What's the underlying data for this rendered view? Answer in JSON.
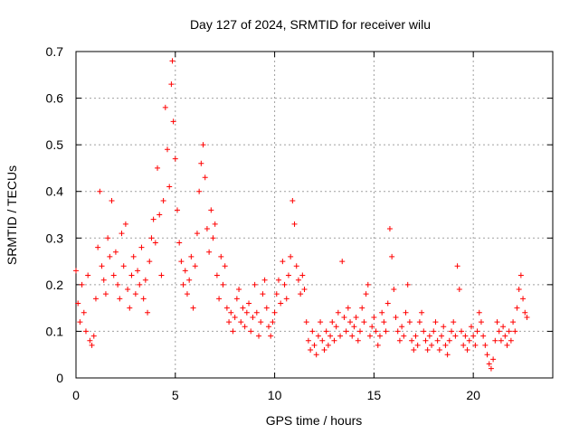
{
  "chart_data": {
    "type": "scatter",
    "title": "Day 127 of 2024, SRMTID for receiver wilu",
    "xlabel": "GPS time / hours",
    "ylabel": "SRMTID / TECUs",
    "xlim": [
      0,
      24
    ],
    "ylim": [
      0,
      0.7
    ],
    "xticks": [
      0,
      5,
      10,
      15,
      20
    ],
    "yticks": [
      0,
      0.1,
      0.2,
      0.3,
      0.4,
      0.5,
      0.6,
      0.7
    ],
    "grid": true,
    "marker": "+",
    "series": [
      {
        "name": "SRMTID",
        "color": "#ff0000",
        "points": [
          [
            0.0,
            0.23
          ],
          [
            0.1,
            0.16
          ],
          [
            0.2,
            0.12
          ],
          [
            0.3,
            0.2
          ],
          [
            0.4,
            0.14
          ],
          [
            0.5,
            0.1
          ],
          [
            0.6,
            0.22
          ],
          [
            0.7,
            0.08
          ],
          [
            0.8,
            0.07
          ],
          [
            0.9,
            0.09
          ],
          [
            1.0,
            0.17
          ],
          [
            1.1,
            0.28
          ],
          [
            1.2,
            0.4
          ],
          [
            1.3,
            0.24
          ],
          [
            1.4,
            0.21
          ],
          [
            1.5,
            0.18
          ],
          [
            1.6,
            0.3
          ],
          [
            1.7,
            0.26
          ],
          [
            1.8,
            0.38
          ],
          [
            1.9,
            0.22
          ],
          [
            2.0,
            0.27
          ],
          [
            2.1,
            0.2
          ],
          [
            2.2,
            0.17
          ],
          [
            2.3,
            0.31
          ],
          [
            2.4,
            0.24
          ],
          [
            2.5,
            0.33
          ],
          [
            2.6,
            0.19
          ],
          [
            2.7,
            0.15
          ],
          [
            2.8,
            0.22
          ],
          [
            2.9,
            0.26
          ],
          [
            3.0,
            0.18
          ],
          [
            3.1,
            0.23
          ],
          [
            3.2,
            0.2
          ],
          [
            3.3,
            0.28
          ],
          [
            3.4,
            0.17
          ],
          [
            3.5,
            0.21
          ],
          [
            3.6,
            0.14
          ],
          [
            3.7,
            0.25
          ],
          [
            3.8,
            0.3
          ],
          [
            3.9,
            0.34
          ],
          [
            4.0,
            0.29
          ],
          [
            4.1,
            0.45
          ],
          [
            4.2,
            0.35
          ],
          [
            4.3,
            0.22
          ],
          [
            4.4,
            0.38
          ],
          [
            4.5,
            0.58
          ],
          [
            4.6,
            0.49
          ],
          [
            4.7,
            0.41
          ],
          [
            4.8,
            0.63
          ],
          [
            4.85,
            0.68
          ],
          [
            4.9,
            0.55
          ],
          [
            5.0,
            0.47
          ],
          [
            5.1,
            0.36
          ],
          [
            5.2,
            0.29
          ],
          [
            5.3,
            0.25
          ],
          [
            5.4,
            0.2
          ],
          [
            5.5,
            0.23
          ],
          [
            5.6,
            0.18
          ],
          [
            5.7,
            0.21
          ],
          [
            5.8,
            0.26
          ],
          [
            5.9,
            0.15
          ],
          [
            6.0,
            0.24
          ],
          [
            6.1,
            0.31
          ],
          [
            6.2,
            0.4
          ],
          [
            6.3,
            0.46
          ],
          [
            6.4,
            0.5
          ],
          [
            6.5,
            0.43
          ],
          [
            6.6,
            0.32
          ],
          [
            6.7,
            0.27
          ],
          [
            6.8,
            0.36
          ],
          [
            6.9,
            0.3
          ],
          [
            7.0,
            0.33
          ],
          [
            7.1,
            0.22
          ],
          [
            7.2,
            0.17
          ],
          [
            7.3,
            0.26
          ],
          [
            7.4,
            0.2
          ],
          [
            7.5,
            0.24
          ],
          [
            7.6,
            0.15
          ],
          [
            7.7,
            0.12
          ],
          [
            7.8,
            0.14
          ],
          [
            7.9,
            0.1
          ],
          [
            8.0,
            0.13
          ],
          [
            8.1,
            0.17
          ],
          [
            8.2,
            0.19
          ],
          [
            8.3,
            0.12
          ],
          [
            8.4,
            0.15
          ],
          [
            8.5,
            0.11
          ],
          [
            8.6,
            0.14
          ],
          [
            8.7,
            0.16
          ],
          [
            8.8,
            0.1
          ],
          [
            8.9,
            0.13
          ],
          [
            9.0,
            0.2
          ],
          [
            9.1,
            0.14
          ],
          [
            9.2,
            0.09
          ],
          [
            9.3,
            0.12
          ],
          [
            9.4,
            0.18
          ],
          [
            9.5,
            0.21
          ],
          [
            9.6,
            0.15
          ],
          [
            9.7,
            0.11
          ],
          [
            9.8,
            0.09
          ],
          [
            9.9,
            0.12
          ],
          [
            10.0,
            0.14
          ],
          [
            10.1,
            0.18
          ],
          [
            10.2,
            0.21
          ],
          [
            10.3,
            0.16
          ],
          [
            10.4,
            0.25
          ],
          [
            10.5,
            0.2
          ],
          [
            10.6,
            0.17
          ],
          [
            10.7,
            0.22
          ],
          [
            10.8,
            0.26
          ],
          [
            10.9,
            0.38
          ],
          [
            11.0,
            0.33
          ],
          [
            11.1,
            0.24
          ],
          [
            11.2,
            0.21
          ],
          [
            11.3,
            0.18
          ],
          [
            11.4,
            0.22
          ],
          [
            11.5,
            0.19
          ],
          [
            11.6,
            0.12
          ],
          [
            11.7,
            0.08
          ],
          [
            11.8,
            0.06
          ],
          [
            11.9,
            0.1
          ],
          [
            12.0,
            0.07
          ],
          [
            12.1,
            0.05
          ],
          [
            12.2,
            0.09
          ],
          [
            12.3,
            0.12
          ],
          [
            12.4,
            0.08
          ],
          [
            12.5,
            0.06
          ],
          [
            12.6,
            0.1
          ],
          [
            12.7,
            0.07
          ],
          [
            12.8,
            0.09
          ],
          [
            12.9,
            0.12
          ],
          [
            13.0,
            0.08
          ],
          [
            13.1,
            0.11
          ],
          [
            13.2,
            0.14
          ],
          [
            13.3,
            0.09
          ],
          [
            13.4,
            0.25
          ],
          [
            13.5,
            0.13
          ],
          [
            13.6,
            0.1
          ],
          [
            13.7,
            0.15
          ],
          [
            13.8,
            0.12
          ],
          [
            13.9,
            0.09
          ],
          [
            14.0,
            0.11
          ],
          [
            14.1,
            0.13
          ],
          [
            14.2,
            0.08
          ],
          [
            14.3,
            0.1
          ],
          [
            14.4,
            0.15
          ],
          [
            14.5,
            0.12
          ],
          [
            14.6,
            0.18
          ],
          [
            14.7,
            0.2
          ],
          [
            14.8,
            0.09
          ],
          [
            14.9,
            0.11
          ],
          [
            15.0,
            0.13
          ],
          [
            15.1,
            0.1
          ],
          [
            15.2,
            0.07
          ],
          [
            15.3,
            0.09
          ],
          [
            15.4,
            0.14
          ],
          [
            15.5,
            0.12
          ],
          [
            15.6,
            0.1
          ],
          [
            15.7,
            0.16
          ],
          [
            15.8,
            0.32
          ],
          [
            15.9,
            0.26
          ],
          [
            16.0,
            0.19
          ],
          [
            16.1,
            0.13
          ],
          [
            16.2,
            0.1
          ],
          [
            16.3,
            0.08
          ],
          [
            16.4,
            0.11
          ],
          [
            16.5,
            0.09
          ],
          [
            16.6,
            0.14
          ],
          [
            16.7,
            0.2
          ],
          [
            16.8,
            0.12
          ],
          [
            16.9,
            0.08
          ],
          [
            17.0,
            0.06
          ],
          [
            17.1,
            0.09
          ],
          [
            17.2,
            0.07
          ],
          [
            17.3,
            0.12
          ],
          [
            17.4,
            0.14
          ],
          [
            17.5,
            0.1
          ],
          [
            17.6,
            0.08
          ],
          [
            17.7,
            0.06
          ],
          [
            17.8,
            0.09
          ],
          [
            17.9,
            0.07
          ],
          [
            18.0,
            0.1
          ],
          [
            18.1,
            0.12
          ],
          [
            18.2,
            0.08
          ],
          [
            18.3,
            0.06
          ],
          [
            18.4,
            0.09
          ],
          [
            18.5,
            0.11
          ],
          [
            18.6,
            0.07
          ],
          [
            18.7,
            0.05
          ],
          [
            18.8,
            0.08
          ],
          [
            18.9,
            0.1
          ],
          [
            19.0,
            0.12
          ],
          [
            19.1,
            0.09
          ],
          [
            19.2,
            0.24
          ],
          [
            19.3,
            0.19
          ],
          [
            19.4,
            0.1
          ],
          [
            19.5,
            0.07
          ],
          [
            19.6,
            0.09
          ],
          [
            19.7,
            0.06
          ],
          [
            19.8,
            0.08
          ],
          [
            19.9,
            0.11
          ],
          [
            20.0,
            0.09
          ],
          [
            20.1,
            0.07
          ],
          [
            20.2,
            0.1
          ],
          [
            20.3,
            0.14
          ],
          [
            20.4,
            0.12
          ],
          [
            20.5,
            0.09
          ],
          [
            20.6,
            0.07
          ],
          [
            20.7,
            0.05
          ],
          [
            20.8,
            0.03
          ],
          [
            20.9,
            0.02
          ],
          [
            21.0,
            0.04
          ],
          [
            21.1,
            0.08
          ],
          [
            21.2,
            0.12
          ],
          [
            21.3,
            0.1
          ],
          [
            21.4,
            0.08
          ],
          [
            21.5,
            0.11
          ],
          [
            21.6,
            0.09
          ],
          [
            21.7,
            0.07
          ],
          [
            21.8,
            0.1
          ],
          [
            21.9,
            0.08
          ],
          [
            22.0,
            0.12
          ],
          [
            22.1,
            0.1
          ],
          [
            22.2,
            0.15
          ],
          [
            22.3,
            0.19
          ],
          [
            22.4,
            0.22
          ],
          [
            22.5,
            0.17
          ],
          [
            22.6,
            0.14
          ],
          [
            22.7,
            0.13
          ]
        ]
      }
    ]
  }
}
